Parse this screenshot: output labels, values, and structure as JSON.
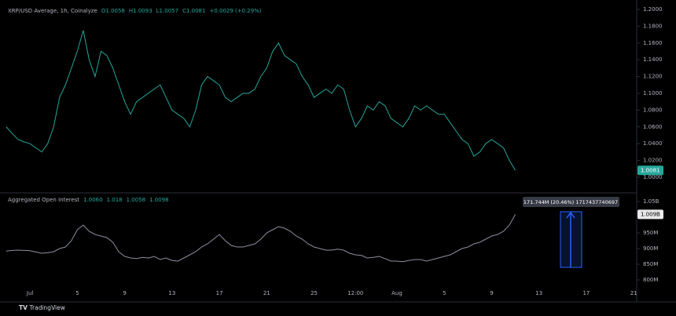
{
  "chart_data": [
    {
      "type": "line",
      "title": "XRP/USD Average, 1h, Coinalyze",
      "ohlc_labels": [
        "O1.0058",
        "H1.0093",
        "L1.0057",
        "C1.0081",
        "+0.0029 (+0.29%)"
      ],
      "color": "#26a69a",
      "values": [
        1.06,
        1.052,
        1.045,
        1.042,
        1.04,
        1.035,
        1.03,
        1.04,
        1.06,
        1.095,
        1.11,
        1.13,
        1.15,
        1.175,
        1.14,
        1.12,
        1.15,
        1.145,
        1.13,
        1.11,
        1.09,
        1.075,
        1.09,
        1.095,
        1.1,
        1.105,
        1.11,
        1.095,
        1.08,
        1.075,
        1.07,
        1.06,
        1.08,
        1.11,
        1.12,
        1.115,
        1.11,
        1.095,
        1.09,
        1.095,
        1.1,
        1.1,
        1.105,
        1.12,
        1.13,
        1.15,
        1.16,
        1.145,
        1.14,
        1.135,
        1.12,
        1.11,
        1.095,
        1.1,
        1.105,
        1.1,
        1.11,
        1.105,
        1.08,
        1.06,
        1.07,
        1.085,
        1.08,
        1.09,
        1.085,
        1.07,
        1.065,
        1.06,
        1.07,
        1.085,
        1.08,
        1.085,
        1.08,
        1.075,
        1.075,
        1.065,
        1.055,
        1.045,
        1.04,
        1.025,
        1.03,
        1.04,
        1.045,
        1.04,
        1.035,
        1.02,
        1.0081,
        null,
        null,
        null,
        null,
        null,
        null,
        null,
        null,
        null,
        null,
        null,
        null,
        null,
        null,
        null,
        null,
        null,
        null,
        null,
        null
      ],
      "ylim": [
        0.9822,
        1.2112
      ],
      "yticks": [
        {
          "value": 1.2,
          "label": "1.2000"
        },
        {
          "value": 1.18,
          "label": "1.1800"
        },
        {
          "value": 1.16,
          "label": "1.1600"
        },
        {
          "value": 1.14,
          "label": "1.1400"
        },
        {
          "value": 1.12,
          "label": "1.1200"
        },
        {
          "value": 1.1,
          "label": "1.1000"
        },
        {
          "value": 1.08,
          "label": "1.0800"
        },
        {
          "value": 1.06,
          "label": "1.0600"
        },
        {
          "value": 1.04,
          "label": "1.0400"
        },
        {
          "value": 1.02,
          "label": "1.0200"
        },
        {
          "value": 1,
          "label": "1.0000"
        }
      ]
    },
    {
      "type": "line",
      "title": "Aggregated Open Interest",
      "ohlc_labels": [
        "1.0060",
        "1.018",
        "1.0058",
        "1.0098"
      ],
      "color": "#8a8f9c",
      "annotation": "171.744M (20.46%) 1717437740697",
      "last_label": "1.009B",
      "categories": [
        null,
        null,
        null,
        null,
        "Jul",
        null,
        null,
        null,
        null,
        null,
        null,
        null,
        "5",
        null,
        null,
        null,
        null,
        null,
        null,
        null,
        "9",
        null,
        null,
        null,
        null,
        null,
        null,
        null,
        "13",
        null,
        null,
        null,
        null,
        null,
        null,
        null,
        "17",
        null,
        null,
        null,
        null,
        null,
        null,
        null,
        "21",
        null,
        null,
        null,
        null,
        null,
        null,
        null,
        "25",
        null,
        null,
        null,
        null,
        null,
        null,
        "12:00",
        null,
        null,
        null,
        null,
        null,
        null,
        "Aug",
        null,
        null,
        null,
        null,
        null,
        null,
        null,
        "5",
        null,
        null,
        null,
        null,
        null,
        null,
        null,
        "9",
        null,
        null,
        null,
        null,
        null,
        null,
        null,
        "13",
        null,
        null,
        null,
        null,
        null,
        null,
        null,
        "17",
        null,
        null,
        null,
        null,
        null,
        null,
        null,
        "21"
      ],
      "values": [
        892,
        894,
        895,
        894,
        893,
        889,
        885,
        887,
        890,
        900,
        905,
        925,
        960,
        975,
        955,
        945,
        940,
        935,
        920,
        890,
        875,
        870,
        868,
        872,
        870,
        875,
        865,
        870,
        862,
        860,
        870,
        880,
        890,
        905,
        915,
        930,
        945,
        925,
        910,
        905,
        905,
        910,
        915,
        930,
        950,
        960,
        970,
        965,
        955,
        940,
        930,
        915,
        905,
        900,
        895,
        895,
        898,
        895,
        885,
        880,
        878,
        870,
        872,
        875,
        868,
        860,
        860,
        858,
        862,
        865,
        865,
        860,
        865,
        870,
        875,
        880,
        890,
        900,
        905,
        915,
        920,
        930,
        940,
        945,
        955,
        975,
        1009,
        null,
        null,
        null,
        null,
        null,
        null,
        null,
        null,
        null,
        null,
        null,
        null,
        null,
        null,
        null,
        null,
        null,
        null,
        null,
        null
      ],
      "ylim": [
        730,
        1072.5
      ],
      "yticks": [
        {
          "value": 1050,
          "label": "1.05B"
        },
        {
          "value": 950,
          "label": "950M"
        },
        {
          "value": 900,
          "label": "900M"
        },
        {
          "value": 850,
          "label": "850M"
        },
        {
          "value": 800,
          "label": "800M"
        }
      ]
    }
  ],
  "footer": {
    "logo": "TradingView"
  }
}
